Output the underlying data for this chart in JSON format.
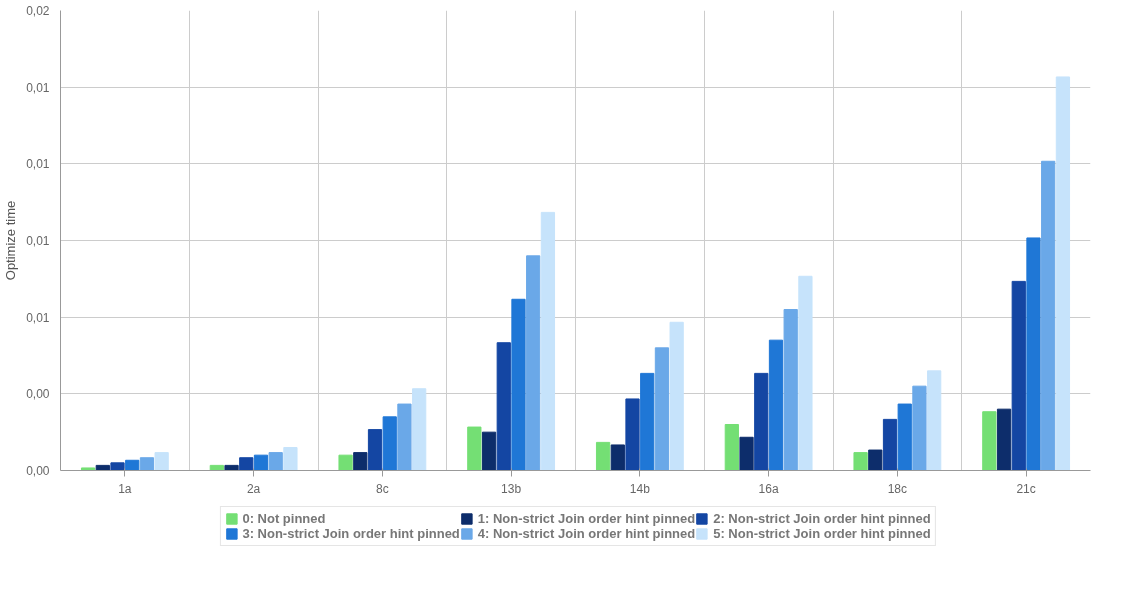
{
  "chart_data": {
    "type": "bar",
    "ylabel": "Optimize time",
    "categories": [
      "1a",
      "2a",
      "8c",
      "13b",
      "14b",
      "16a",
      "18c",
      "21c"
    ],
    "ylim": [
      0,
      0.018
    ],
    "yticks": [
      {
        "value": 0,
        "label": "0,00"
      },
      {
        "value": 0.003,
        "label": "0,00"
      },
      {
        "value": 0.006,
        "label": "0,01"
      },
      {
        "value": 0.009,
        "label": "0,01"
      },
      {
        "value": 0.012,
        "label": "0,01"
      },
      {
        "value": 0.015,
        "label": "0,01"
      },
      {
        "value": 0.018,
        "label": "0,02"
      }
    ],
    "grid": true,
    "legend": "bottom",
    "series": [
      {
        "name": "0: Not pinned",
        "color": "#74df74",
        "values": [
          0.0001,
          0.0002,
          0.0006,
          0.0017,
          0.0011,
          0.0018,
          0.0007,
          0.0023
        ]
      },
      {
        "name": "1: Non-strict Join order hint pinned",
        "color": "#0d2d6b",
        "values": [
          0.0002,
          0.0002,
          0.0007,
          0.0015,
          0.001,
          0.0013,
          0.0008,
          0.0024
        ]
      },
      {
        "name": "2: Non-strict Join order hint pinned",
        "color": "#1446a3",
        "values": [
          0.0003,
          0.0005,
          0.0016,
          0.005,
          0.0028,
          0.0038,
          0.002,
          0.0074
        ]
      },
      {
        "name": "3: Non-strict Join order hint pinned",
        "color": "#1f77d6",
        "values": [
          0.0004,
          0.0006,
          0.0021,
          0.0067,
          0.0038,
          0.0051,
          0.0026,
          0.0091
        ]
      },
      {
        "name": "4: Non-strict Join order hint pinned",
        "color": "#6aa8e8",
        "values": [
          0.0005,
          0.0007,
          0.0026,
          0.0084,
          0.0048,
          0.0063,
          0.0033,
          0.0121
        ]
      },
      {
        "name": "5: Non-strict Join order hint pinned",
        "color": "#c6e3fb",
        "values": [
          0.0007,
          0.0009,
          0.0032,
          0.0101,
          0.0058,
          0.0076,
          0.0039,
          0.0154
        ]
      }
    ]
  }
}
